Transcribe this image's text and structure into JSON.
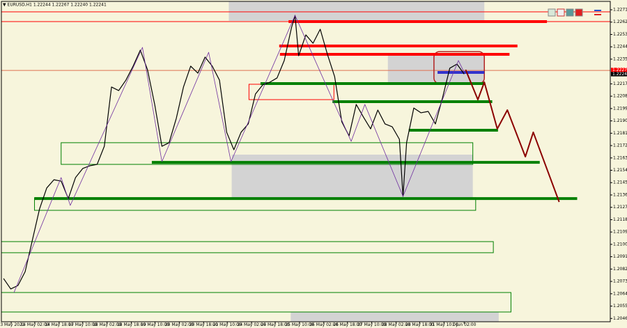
{
  "chart_data": {
    "type": "line",
    "header": "▼ EURUSD,H1  1.22244 1.22267 1.22240 1.22241",
    "xlim": [
      -0.3,
      84.3
    ],
    "ylim": [
      1.20436,
      1.22771
    ],
    "yticks": [
      {
        "value": 1.2271,
        "label": "1.22710"
      },
      {
        "value": 1.2262,
        "label": "1.22620"
      },
      {
        "value": 1.2253,
        "label": "1.22530"
      },
      {
        "value": 1.2244,
        "label": "1.22440"
      },
      {
        "value": 1.2235,
        "label": "1.22350"
      },
      {
        "value": 1.2217,
        "label": "1.22170"
      },
      {
        "value": 1.2208,
        "label": "1.22080"
      },
      {
        "value": 1.2199,
        "label": "1.21990"
      },
      {
        "value": 1.219,
        "label": "1.21900"
      },
      {
        "value": 1.2181,
        "label": "1.21810"
      },
      {
        "value": 1.2172,
        "label": "1.21720"
      },
      {
        "value": 1.2163,
        "label": "1.21630"
      },
      {
        "value": 1.2154,
        "label": "1.21540"
      },
      {
        "value": 1.2145,
        "label": "1.21450"
      },
      {
        "value": 1.2136,
        "label": "1.21360"
      },
      {
        "value": 1.2127,
        "label": "1.21270"
      },
      {
        "value": 1.2118,
        "label": "1.21180"
      },
      {
        "value": 1.2109,
        "label": "1.21090"
      },
      {
        "value": 1.21,
        "label": "1.21000"
      },
      {
        "value": 1.2091,
        "label": "1.20910"
      },
      {
        "value": 1.2082,
        "label": "1.20820"
      },
      {
        "value": 1.2073,
        "label": "1.20730"
      },
      {
        "value": 1.2064,
        "label": "1.20640"
      },
      {
        "value": 1.2055,
        "label": "1.20550"
      },
      {
        "value": 1.2046,
        "label": "1.20460"
      }
    ],
    "xticks": [
      {
        "value": 1.06,
        "label": "13 May 2021"
      },
      {
        "value": 4.34,
        "label": "14 May 02:00"
      },
      {
        "value": 7.72,
        "label": "14 May 18:00"
      },
      {
        "value": 11.0,
        "label": "17 May 10:00"
      },
      {
        "value": 14.38,
        "label": "18 May 02:00"
      },
      {
        "value": 17.76,
        "label": "18 May 18:00"
      },
      {
        "value": 21.04,
        "label": "19 May 10:00"
      },
      {
        "value": 24.42,
        "label": "20 May 02:00"
      },
      {
        "value": 27.8,
        "label": "20 May 18:00"
      },
      {
        "value": 31.08,
        "label": "21 May 10:00"
      },
      {
        "value": 34.46,
        "label": "24 May 02:00"
      },
      {
        "value": 37.74,
        "label": "24 May 18:00"
      },
      {
        "value": 41.12,
        "label": "25 May 10:00"
      },
      {
        "value": 44.5,
        "label": "26 May 02:00"
      },
      {
        "value": 47.78,
        "label": "26 May 18:00"
      },
      {
        "value": 51.16,
        "label": "27 May 10:00"
      },
      {
        "value": 54.54,
        "label": "28 May 02:00"
      },
      {
        "value": 57.82,
        "label": "28 May 18:00"
      },
      {
        "value": 61.2,
        "label": "31 May 10:00"
      },
      {
        "value": 64.0,
        "label": "1 Jun 02:00"
      }
    ],
    "price_labels": [
      {
        "value": 1.22271,
        "color": "#ff0000"
      },
      {
        "value": 1.22241,
        "color": "#000000"
      }
    ],
    "shade_color": "#d3d3d3",
    "shaded": [
      {
        "x": [
          31.3,
          66.8
        ],
        "y": [
          1.22629,
          1.22771
        ]
      },
      {
        "x": [
          53.4,
          66.8
        ],
        "y": [
          1.22172,
          1.22385
        ]
      },
      {
        "x": [
          31.7,
          65.2
        ],
        "y": [
          1.2134,
          1.21654
        ]
      },
      {
        "x": [
          39.9,
          68.8
        ],
        "y": [
          1.20436,
          1.20507
        ]
      }
    ],
    "hlines": [
      {
        "y": 1.22695,
        "color": "#ff0000"
      },
      {
        "y": 1.22624,
        "color": "#ff0000"
      },
      {
        "y": 1.22268,
        "color": "#e07050"
      }
    ],
    "boxes": [
      {
        "x": [
          8,
          65.2
        ],
        "y": [
          1.21583,
          1.21741
        ],
        "color": "#008000"
      },
      {
        "x": [
          4.3,
          65.6
        ],
        "y": [
          1.21248,
          1.2134
        ],
        "color": "#008000"
      },
      {
        "x": [
          -0.3,
          68.05
        ],
        "y": [
          1.20939,
          1.2102
        ],
        "color": "#008000"
      },
      {
        "x": [
          -0.3,
          70.5
        ],
        "y": [
          1.20507,
          1.20649
        ],
        "color": "#008000"
      },
      {
        "x": [
          34.1,
          45.9
        ],
        "y": [
          1.22055,
          1.22167
        ],
        "color": "#ff0000"
      },
      {
        "x": [
          59.8,
          66.8
        ],
        "y": [
          1.22172,
          1.22405
        ],
        "color": "#b22222",
        "rounded": true
      }
    ],
    "series": [
      {
        "color": "#000000",
        "style": "price",
        "x": [
          0,
          1,
          2,
          3,
          4,
          5,
          6,
          7,
          8,
          9,
          10,
          11,
          12,
          13,
          14,
          15,
          16,
          17,
          18,
          19,
          20,
          21,
          22,
          23,
          24,
          25,
          26,
          27,
          28,
          29,
          30,
          31,
          32,
          33,
          34,
          35,
          36,
          37,
          38,
          39,
          40,
          40.5,
          41,
          42,
          43,
          44,
          45,
          46,
          47,
          48,
          49,
          50,
          51,
          52,
          53,
          54,
          55,
          55.5,
          56,
          57,
          58,
          59,
          60,
          61,
          62,
          63,
          64
        ],
        "values": [
          1.20751,
          1.20675,
          1.207,
          1.20801,
          1.2103,
          1.21258,
          1.21411,
          1.21471,
          1.21461,
          1.21334,
          1.21487,
          1.21553,
          1.21573,
          1.21583,
          1.21715,
          1.22147,
          1.22121,
          1.22197,
          1.22299,
          1.22416,
          1.22273,
          1.2202,
          1.21715,
          1.21741,
          1.21918,
          1.22147,
          1.22299,
          1.22248,
          1.22365,
          1.22299,
          1.22197,
          1.21817,
          1.2169,
          1.21817,
          1.21878,
          1.22096,
          1.22162,
          1.22182,
          1.22213,
          1.2234,
          1.22578,
          1.22669,
          1.22375,
          1.22527,
          1.22466,
          1.22568,
          1.22385,
          1.22223,
          1.21893,
          1.21791,
          1.2202,
          1.21928,
          1.21842,
          1.21979,
          1.21878,
          1.21857,
          1.21766,
          1.2135,
          1.21741,
          1.21994,
          1.21959,
          1.21969,
          1.21878,
          1.2207,
          1.22284,
          1.22314,
          1.22241
        ]
      },
      {
        "color": "#7030a0",
        "style": "thin",
        "x": [
          1.45,
          8.0,
          9.27,
          19.3,
          22.0,
          28.5,
          31.6,
          40.5,
          48.3,
          50.2,
          55.5,
          63.2,
          64.0
        ],
        "values": [
          1.20649,
          1.21487,
          1.21284,
          1.22436,
          1.21603,
          1.224,
          1.21603,
          1.22669,
          1.21751,
          1.2202,
          1.2135,
          1.2234,
          1.22253
        ]
      },
      {
        "color": "#8b0000",
        "style": "thick",
        "x": [
          64.2,
          65.9,
          66.8,
          68.6,
          70.0,
          72.5,
          73.6,
          77.2
        ],
        "values": [
          1.22273,
          1.22055,
          1.22182,
          1.21842,
          1.21979,
          1.21639,
          1.21817,
          1.21309
        ]
      }
    ],
    "segments": [
      {
        "x": [
          39.6,
          75.5
        ],
        "y": 1.22624,
        "color": "#ff0000"
      },
      {
        "x": [
          38.3,
          71.4
        ],
        "y": 1.22446,
        "color": "#ff0000"
      },
      {
        "x": [
          38.4,
          70.3
        ],
        "y": 1.22385,
        "color": "#ff0000"
      },
      {
        "x": [
          60.3,
          66.8
        ],
        "y": 1.22253,
        "color": "#3333cc"
      },
      {
        "x": [
          35.7,
          66.9
        ],
        "y": 1.22172,
        "color": "#008000"
      },
      {
        "x": [
          45.7,
          67.9
        ],
        "y": 1.2204,
        "color": "#008000"
      },
      {
        "x": [
          56.3,
          68.7
        ],
        "y": 1.21832,
        "color": "#008000"
      },
      {
        "x": [
          20.6,
          74.5
        ],
        "y": 1.21598,
        "color": "#008000"
      },
      {
        "x": [
          4.3,
          79.7
        ],
        "y": 1.21334,
        "color": "#008000"
      }
    ]
  }
}
